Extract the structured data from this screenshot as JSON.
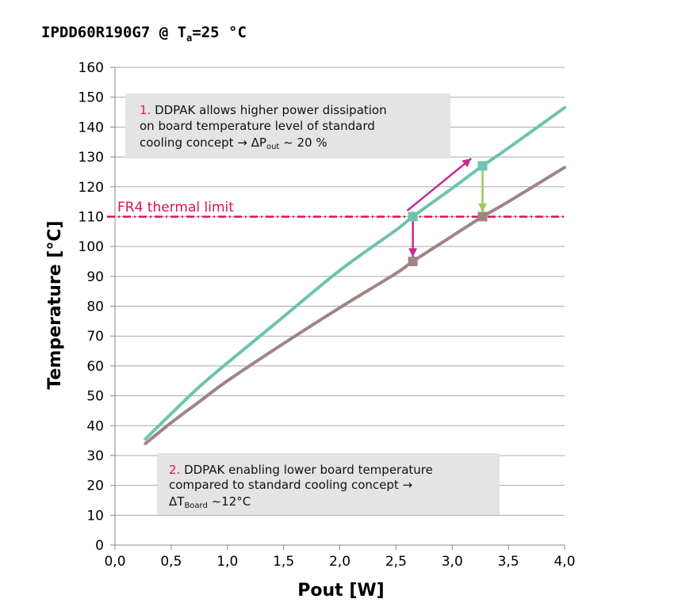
{
  "chart_data": {
    "type": "line",
    "title": {
      "prefix": "IPDD60R190G7 @  T",
      "sub": "a",
      "suffix": "=25 °C"
    },
    "xlabel": "Pout [W]",
    "ylabel": "Temperature [°C]",
    "xlim": [
      0,
      4
    ],
    "ylim": [
      0,
      160
    ],
    "x_ticks": [
      0,
      0.5,
      1,
      1.5,
      2,
      2.5,
      3,
      3.5,
      4
    ],
    "x_tick_labels": [
      "0,0",
      "0,5",
      "1,0",
      "1,5",
      "2,0",
      "2,5",
      "3,0",
      "3,5",
      "4,0"
    ],
    "y_ticks": [
      0,
      10,
      20,
      30,
      40,
      50,
      60,
      70,
      80,
      90,
      100,
      110,
      120,
      130,
      140,
      150,
      160
    ],
    "y_tick_labels": [
      "0",
      "10",
      "20",
      "30",
      "40",
      "50",
      "60",
      "70",
      "80",
      "90",
      "100",
      "110",
      "120",
      "130",
      "140",
      "150",
      "160"
    ],
    "grid": "horizontal",
    "series": [
      {
        "color": "#6ec3ad",
        "x": [
          0.27,
          0.5,
          0.75,
          1.0,
          1.5,
          2.0,
          2.5,
          2.65,
          3.0,
          3.27,
          3.5,
          4.0
        ],
        "y": [
          35.5,
          44,
          53,
          61,
          76.5,
          92,
          105.5,
          110,
          119.5,
          127,
          133,
          146.5
        ]
      },
      {
        "color": "#9e8584",
        "x": [
          0.27,
          0.5,
          0.75,
          1.0,
          1.5,
          2.0,
          2.5,
          2.65,
          3.0,
          3.27,
          3.5,
          4.0
        ],
        "y": [
          34,
          41,
          48,
          55,
          67.5,
          79.5,
          91,
          95,
          103.5,
          110,
          115,
          126.5
        ]
      }
    ],
    "limit_line": {
      "y": 110,
      "label": "FR4 thermal limit",
      "color": "#e0104f"
    },
    "markers": [
      {
        "x": 2.65,
        "y": 110,
        "color": "#6ec3ad"
      },
      {
        "x": 2.65,
        "y": 95,
        "color": "#9e8584"
      },
      {
        "x": 3.27,
        "y": 127,
        "color": "#6ec3ad"
      },
      {
        "x": 3.27,
        "y": 110,
        "color": "#9e8584"
      }
    ],
    "arrows": [
      {
        "from": [
          2.6,
          112
        ],
        "to": [
          3.17,
          129.5
        ],
        "color": "#c22d8f"
      },
      {
        "from": [
          2.65,
          110
        ],
        "to": [
          2.65,
          96.5
        ],
        "color": "#c22d8f"
      },
      {
        "from": [
          3.27,
          127
        ],
        "to": [
          3.27,
          111.5
        ],
        "color": "#9ac95a"
      }
    ],
    "annotations": [
      {
        "number": "1.",
        "line1": " DDPAK allows higher power dissipation",
        "line2": "on board temperature level of standard",
        "line3_prefix": "cooling concept → ΔP",
        "line3_sub": "out",
        "line3_suffix": " ~ 20 %"
      },
      {
        "number": "2.",
        "line1": " DDPAK enabling lower board temperature",
        "line2": "compared to standard cooling concept →",
        "line3_prefix": "ΔT",
        "line3_sub": "Board",
        "line3_suffix": " ~12°C"
      }
    ],
    "colors": {
      "series_ddpak": "#6ec3ad",
      "series_standard": "#9e8584",
      "limit": "#e0104f",
      "annotation_box": "#e4e4e4",
      "gridline": "#a9a9a9"
    }
  }
}
